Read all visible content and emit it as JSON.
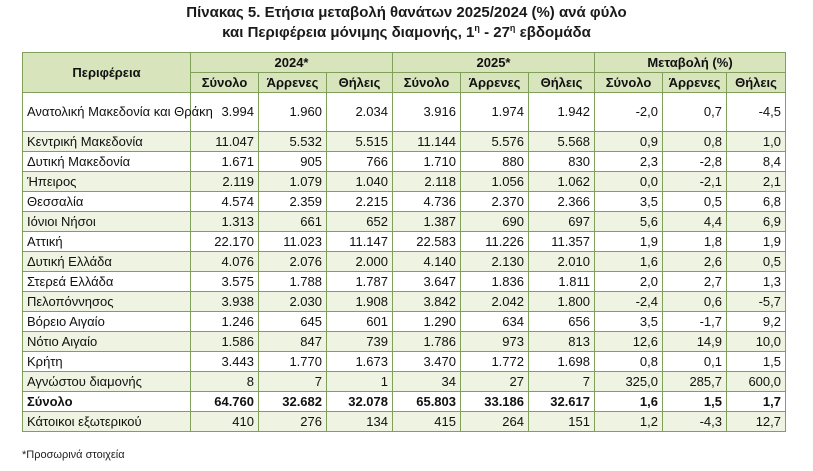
{
  "title_line1": "Πίνακας 5. Ετήσια μεταβολή θανάτων 2025/2024 (%) ανά φύλο",
  "title_line2_prefix": "και Περιφέρεια μόνιμης διαμονής, 1",
  "title_sup1": "η",
  "title_mid": " - 27",
  "title_sup2": "η",
  "title_suffix": " εβδομάδα",
  "headers": {
    "region": "Περιφέρεια",
    "group_2024": "2024*",
    "group_2025": "2025*",
    "group_change": "Μεταβολή (%)",
    "sub": [
      "Σύνολο",
      "Άρρενες",
      "Θήλεις",
      "Σύνολο",
      "Άρρενες",
      "Θήλεις",
      "Σύνολο",
      "Άρρενες",
      "Θήλεις"
    ]
  },
  "rows": [
    {
      "region": "Ανατολική Μακεδονία και Θράκη",
      "values": [
        "3.994",
        "1.960",
        "2.034",
        "3.916",
        "1.974",
        "1.942",
        "-2,0",
        "0,7",
        "-4,5"
      ]
    },
    {
      "region": "Κεντρική Μακεδονία",
      "values": [
        "11.047",
        "5.532",
        "5.515",
        "11.144",
        "5.576",
        "5.568",
        "0,9",
        "0,8",
        "1,0"
      ]
    },
    {
      "region": "Δυτική Μακεδονία",
      "values": [
        "1.671",
        "905",
        "766",
        "1.710",
        "880",
        "830",
        "2,3",
        "-2,8",
        "8,4"
      ]
    },
    {
      "region": "Ήπειρος",
      "values": [
        "2.119",
        "1.079",
        "1.040",
        "2.118",
        "1.056",
        "1.062",
        "0,0",
        "-2,1",
        "2,1"
      ]
    },
    {
      "region": "Θεσσαλία",
      "values": [
        "4.574",
        "2.359",
        "2.215",
        "4.736",
        "2.370",
        "2.366",
        "3,5",
        "0,5",
        "6,8"
      ]
    },
    {
      "region": "Ιόνιοι Νήσοι",
      "values": [
        "1.313",
        "661",
        "652",
        "1.387",
        "690",
        "697",
        "5,6",
        "4,4",
        "6,9"
      ]
    },
    {
      "region": "Αττική",
      "values": [
        "22.170",
        "11.023",
        "11.147",
        "22.583",
        "11.226",
        "11.357",
        "1,9",
        "1,8",
        "1,9"
      ]
    },
    {
      "region": "Δυτική Ελλάδα",
      "values": [
        "4.076",
        "2.076",
        "2.000",
        "4.140",
        "2.130",
        "2.010",
        "1,6",
        "2,6",
        "0,5"
      ]
    },
    {
      "region": "Στερεά Ελλάδα",
      "values": [
        "3.575",
        "1.788",
        "1.787",
        "3.647",
        "1.836",
        "1.811",
        "2,0",
        "2,7",
        "1,3"
      ]
    },
    {
      "region": "Πελοπόννησος",
      "values": [
        "3.938",
        "2.030",
        "1.908",
        "3.842",
        "2.042",
        "1.800",
        "-2,4",
        "0,6",
        "-5,7"
      ]
    },
    {
      "region": "Βόρειο Αιγαίο",
      "values": [
        "1.246",
        "645",
        "601",
        "1.290",
        "634",
        "656",
        "3,5",
        "-1,7",
        "9,2"
      ]
    },
    {
      "region": "Νότιο Αιγαίο",
      "values": [
        "1.586",
        "847",
        "739",
        "1.786",
        "973",
        "813",
        "12,6",
        "14,9",
        "10,0"
      ]
    },
    {
      "region": "Κρήτη",
      "values": [
        "3.443",
        "1.770",
        "1.673",
        "3.470",
        "1.772",
        "1.698",
        "0,8",
        "0,1",
        "1,5"
      ]
    },
    {
      "region": "Αγνώστου διαμονής",
      "values": [
        "8",
        "7",
        "1",
        "34",
        "27",
        "7",
        "325,0",
        "285,7",
        "600,0"
      ]
    },
    {
      "region": "Σύνολο",
      "values": [
        "64.760",
        "32.682",
        "32.078",
        "65.803",
        "33.186",
        "32.617",
        "1,6",
        "1,5",
        "1,7"
      ],
      "total": true
    },
    {
      "region": "Κάτοικοι εξωτερικού",
      "values": [
        "410",
        "276",
        "134",
        "415",
        "264",
        "151",
        "1,2",
        "-4,3",
        "12,7"
      ]
    }
  ],
  "footnote": "*Προσωρινά στοιχεία"
}
